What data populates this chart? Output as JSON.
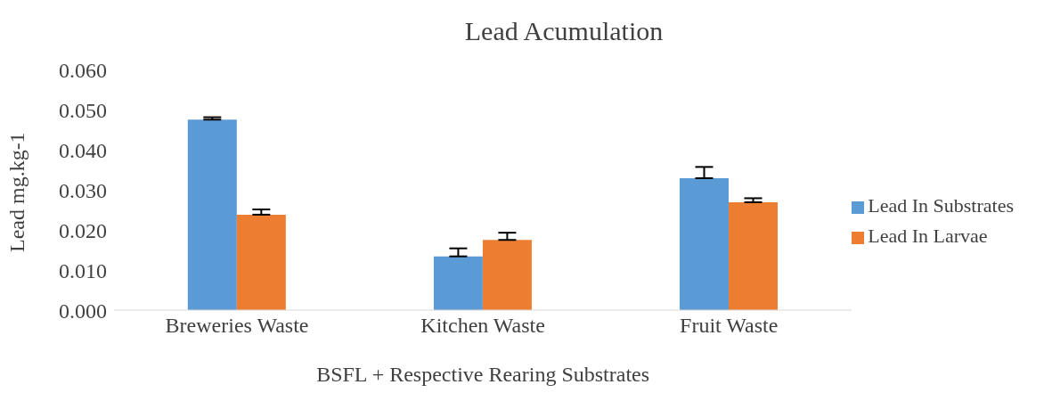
{
  "chart_data": {
    "type": "bar",
    "title": "Lead Acumulation",
    "xlabel": "BSFL + Respective Rearing Substrates",
    "ylabel": "Lead mg.kg-1",
    "categories": [
      "Breweries Waste",
      "Kitchen Waste",
      "Fruit Waste"
    ],
    "series": [
      {
        "name": "Lead In Substrates",
        "color": "#5b9bd5",
        "values": [
          0.0475,
          0.0134,
          0.0329
        ],
        "errors": [
          [
            0.0475,
            0.0481
          ],
          [
            0.0134,
            0.0154
          ],
          [
            0.0329,
            0.0357
          ]
        ]
      },
      {
        "name": "Lead In Larvae",
        "color": "#ed7d31",
        "values": [
          0.0238,
          0.0175,
          0.0269
        ],
        "errors": [
          [
            0.0238,
            0.0251
          ],
          [
            0.0175,
            0.0193
          ],
          [
            0.0269,
            0.0279
          ]
        ]
      }
    ],
    "ylim": [
      0,
      0.06
    ],
    "yticks": [
      {
        "value": 0,
        "label": "0.000"
      },
      {
        "value": 0.01,
        "label": "0.010"
      },
      {
        "value": 0.02,
        "label": "0.020"
      },
      {
        "value": 0.03,
        "label": "0.030"
      },
      {
        "value": 0.04,
        "label": "0.040"
      },
      {
        "value": 0.05,
        "label": "0.050"
      },
      {
        "value": 0.06,
        "label": "0.060"
      }
    ],
    "grid": false,
    "legend": "right"
  }
}
